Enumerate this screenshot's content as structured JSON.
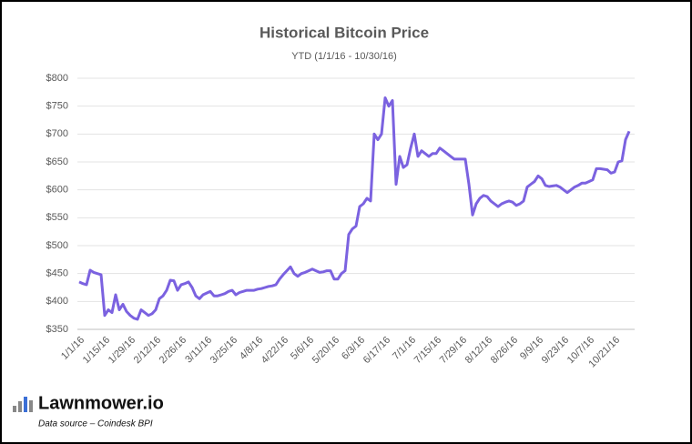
{
  "chart_data": {
    "type": "line",
    "title": "Historical Bitcoin Price",
    "subtitle": "YTD (1/1/16 - 10/30/16)",
    "categories": [
      "1/1/16",
      null,
      null,
      null,
      null,
      null,
      null,
      "1/15/16",
      null,
      null,
      null,
      null,
      null,
      null,
      "1/29/16",
      null,
      null,
      null,
      null,
      null,
      null,
      "2/12/16",
      null,
      null,
      null,
      null,
      null,
      null,
      "2/26/16",
      null,
      null,
      null,
      null,
      null,
      null,
      "3/11/16",
      null,
      null,
      null,
      null,
      null,
      null,
      "3/25/16",
      null,
      null,
      null,
      null,
      null,
      null,
      "4/8/16",
      null,
      null,
      null,
      null,
      null,
      null,
      "4/22/16",
      null,
      null,
      null,
      null,
      null,
      null,
      "5/6/16",
      null,
      null,
      null,
      null,
      null,
      null,
      "5/20/16",
      null,
      null,
      null,
      null,
      null,
      null,
      "6/3/16",
      null,
      null,
      null,
      null,
      null,
      null,
      "6/17/16",
      null,
      null,
      null,
      null,
      null,
      null,
      "7/1/16",
      null,
      null,
      null,
      null,
      null,
      null,
      "7/15/16",
      null,
      null,
      null,
      null,
      null,
      null,
      "7/29/16",
      null,
      null,
      null,
      null,
      null,
      null,
      "8/12/16",
      null,
      null,
      null,
      null,
      null,
      null,
      "8/26/16",
      null,
      null,
      null,
      null,
      null,
      null,
      "9/9/16",
      null,
      null,
      null,
      null,
      null,
      null,
      "9/23/16",
      null,
      null,
      null,
      null,
      null,
      null,
      "10/7/16",
      null,
      null,
      null,
      null,
      null,
      null,
      "10/21/16",
      null,
      null,
      null,
      null
    ],
    "values": [
      435,
      432,
      430,
      456,
      452,
      450,
      448,
      375,
      385,
      380,
      412,
      385,
      395,
      382,
      375,
      370,
      368,
      385,
      380,
      375,
      378,
      385,
      405,
      410,
      420,
      438,
      437,
      420,
      430,
      432,
      435,
      425,
      410,
      405,
      412,
      415,
      418,
      410,
      410,
      412,
      414,
      418,
      420,
      412,
      416,
      418,
      420,
      420,
      420,
      422,
      423,
      425,
      427,
      428,
      430,
      440,
      448,
      455,
      462,
      450,
      445,
      450,
      452,
      455,
      458,
      455,
      452,
      453,
      455,
      455,
      440,
      440,
      450,
      455,
      520,
      530,
      535,
      570,
      575,
      585,
      580,
      700,
      690,
      700,
      765,
      750,
      760,
      610,
      660,
      640,
      645,
      675,
      700,
      660,
      670,
      665,
      660,
      665,
      665,
      675,
      670,
      665,
      660,
      655,
      655,
      655,
      655,
      610,
      555,
      575,
      585,
      590,
      588,
      580,
      575,
      570,
      575,
      578,
      580,
      578,
      572,
      575,
      580,
      605,
      610,
      615,
      625,
      620,
      608,
      606,
      607,
      608,
      605,
      600,
      595,
      600,
      605,
      608,
      612,
      612,
      615,
      618,
      638,
      638,
      637,
      636,
      630,
      632,
      650,
      652,
      690,
      705
    ],
    "color": "#7b62e0",
    "ylim": [
      350,
      800
    ],
    "yticks": [
      {
        "value": 350,
        "label": "$350"
      },
      {
        "value": 400,
        "label": "$400"
      },
      {
        "value": 450,
        "label": "$450"
      },
      {
        "value": 500,
        "label": "$500"
      },
      {
        "value": 550,
        "label": "$550"
      },
      {
        "value": 600,
        "label": "$600"
      },
      {
        "value": 650,
        "label": "$650"
      },
      {
        "value": 700,
        "label": "$700"
      },
      {
        "value": 750,
        "label": "$750"
      },
      {
        "value": 800,
        "label": "$800"
      }
    ],
    "grid": true
  },
  "footer": {
    "brand": "Lawnmower.io",
    "source": "Data source – Coindesk BPI"
  }
}
